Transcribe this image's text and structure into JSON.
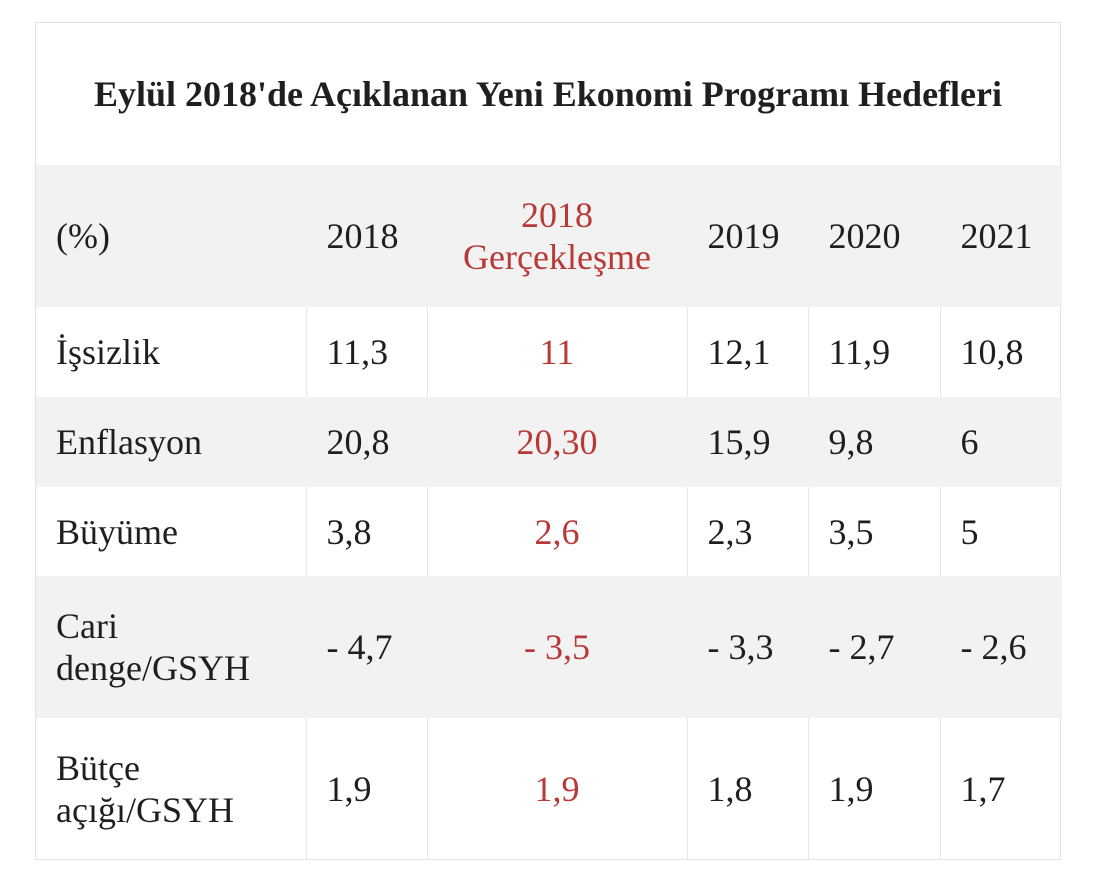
{
  "title": "Eylül 2018'de Açıklanan Yeni Ekonomi Programı Hedefleri",
  "colors": {
    "highlight": "#b83a37",
    "shade": "#f2f2f2",
    "text": "#1f1f1f"
  },
  "header": [
    "(%)",
    "2018",
    "2018 Gerçekleşme",
    "2019",
    "2020",
    "2021"
  ],
  "rows": [
    {
      "label": "İşsizlik",
      "values": [
        "11,3",
        "11",
        "12,1",
        "11,9",
        "10,8"
      ]
    },
    {
      "label": "Enflasyon",
      "values": [
        "20,8",
        "20,30",
        "15,9",
        "9,8",
        "6"
      ]
    },
    {
      "label": "Büyüme",
      "values": [
        "3,8",
        "2,6",
        "2,3",
        "3,5",
        "5"
      ]
    },
    {
      "label": "Cari denge/GSYH",
      "values": [
        "- 4,7",
        "- 3,5",
        "- 3,3",
        "- 2,7",
        "- 2,6"
      ]
    },
    {
      "label": "Bütçe açığı/GSYH",
      "values": [
        "1,9",
        "1,9",
        "1,8",
        "1,9",
        "1,7"
      ]
    }
  ]
}
